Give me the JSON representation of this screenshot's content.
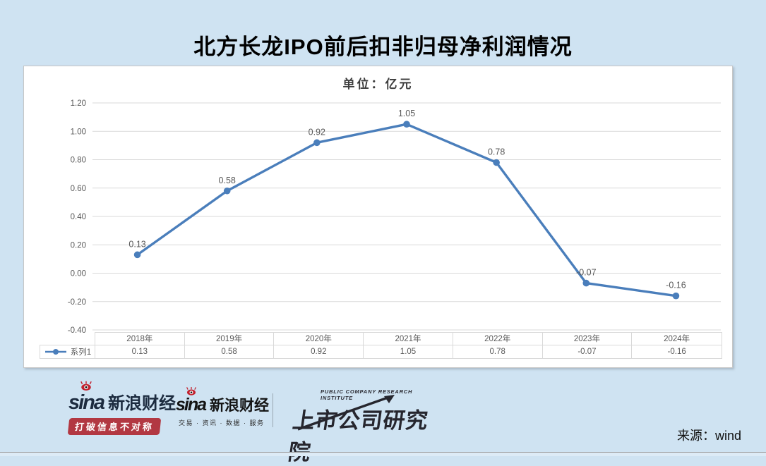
{
  "page": {
    "title": "北方长龙IPO前后扣非归母净利润情况",
    "source": "来源：wind"
  },
  "chart_data": {
    "type": "line",
    "title": "单位：亿元",
    "categories": [
      "2018年",
      "2019年",
      "2020年",
      "2021年",
      "2022年",
      "2023年",
      "2024年"
    ],
    "series": [
      {
        "name": "系列1",
        "values": [
          0.13,
          0.58,
          0.92,
          1.05,
          0.78,
          -0.07,
          -0.16
        ]
      }
    ],
    "point_labels": [
      "0.13",
      "0.58",
      "0.92",
      "1.05",
      "0.78",
      "-0.07",
      "-0.16"
    ],
    "ylim": [
      -0.4,
      1.2
    ],
    "yticks": [
      "1.20",
      "1.00",
      "0.80",
      "0.60",
      "0.40",
      "0.20",
      "0.00",
      "-0.20",
      "-0.40"
    ],
    "grid": true,
    "legend_position": "bottom-left",
    "colors": {
      "line": "#4a7ebb",
      "label_text": "#595959",
      "gridline": "#d9d9d9",
      "axis_text": "#595959"
    }
  },
  "footer": {
    "sina_finance_1": {
      "brand": "sina",
      "name": "新浪财经",
      "badge": "打破信息不对称"
    },
    "sina_finance_2": {
      "brand": "sina",
      "name": "新浪财经",
      "tagline": "交易 · 资讯 · 数据 · 服务"
    },
    "institute": {
      "en": "PUBLIC COMPANY RESEARCH INSTITUTE",
      "cn": "上市公司研究院"
    }
  }
}
